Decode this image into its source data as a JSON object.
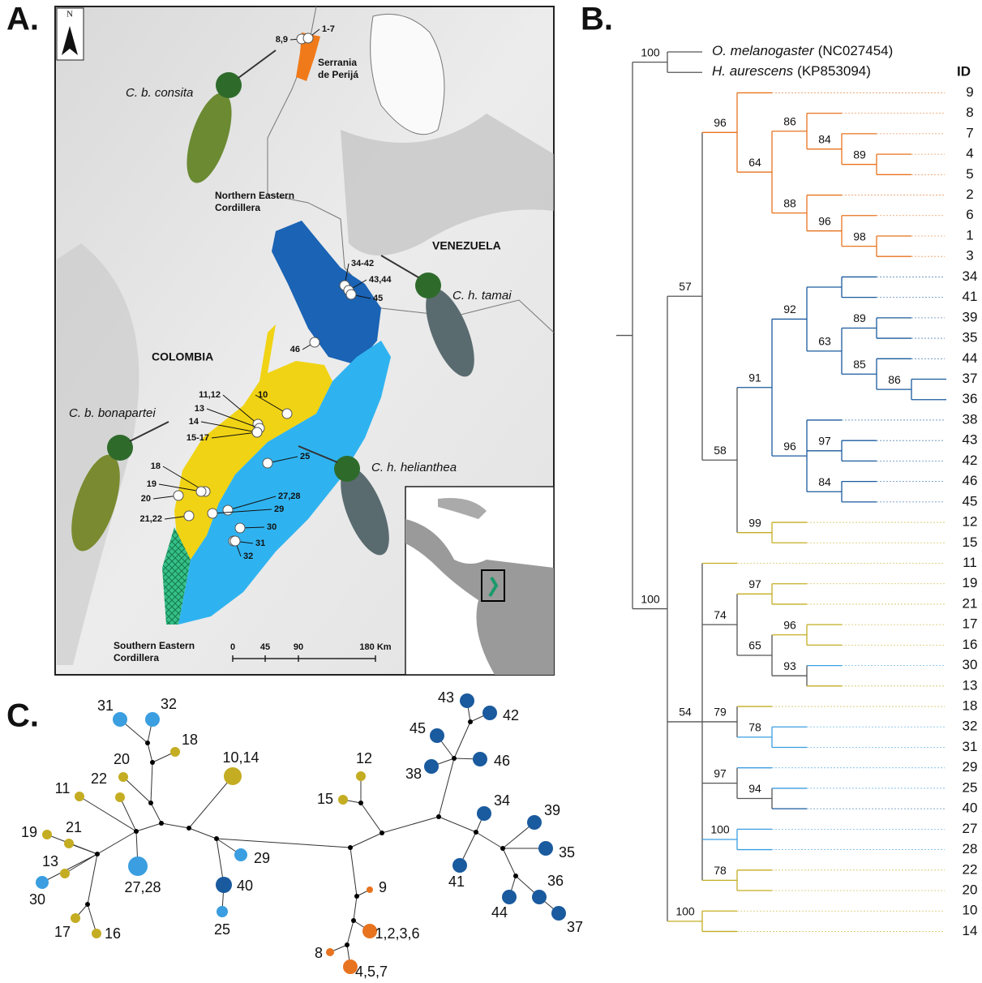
{
  "panels": [
    "A.",
    "B.",
    "C."
  ],
  "map": {
    "north": "N",
    "labels": [
      "C. b. consita",
      "Serrania",
      "de Perijá",
      "Northern Eastern",
      "Cordillera",
      "VENEZUELA",
      "C. h. tamai",
      "COLOMBIA",
      "C. b. bonapartei",
      "C. h. helianthea",
      "Southern Eastern",
      "Cordillera"
    ],
    "sites": [
      "8,9",
      "1-7",
      "34-42",
      "43,44",
      "45",
      "46",
      "10",
      "11,12",
      "13",
      "14",
      "15-17",
      "18",
      "19",
      "20",
      "21,22",
      "25",
      "27,28",
      "29",
      "30",
      "31",
      "32"
    ],
    "scale": [
      "0",
      "45",
      "90",
      "180 Km"
    ]
  },
  "tree": {
    "id_header": "ID",
    "root": {
      "children": [
        {
          "support": 100,
          "children": [
            {
              "name": "O. melanogaster",
              "accession": "(NC027454)"
            },
            {
              "name": "H. aurescens",
              "accession": "(KP853094)"
            }
          ]
        },
        {
          "support": 100,
          "children": [
            {
              "support": 57,
              "children": [
                {
                  "support": 96,
                  "color": "#e8731f",
                  "children": [
                    {
                      "id": 9,
                      "color": "#e8731f"
                    },
                    {
                      "support": 64,
                      "color": "#e8731f",
                      "children": [
                        {
                          "support": 86,
                          "color": "#e8731f",
                          "children": [
                            {
                              "id": 8,
                              "color": "#e8731f"
                            },
                            {
                              "support": 84,
                              "color": "#e8731f",
                              "children": [
                                {
                                  "id": 7,
                                  "color": "#e8731f"
                                },
                                {
                                  "support": 89,
                                  "color": "#e8731f",
                                  "children": [
                                    {
                                      "id": 4,
                                      "color": "#e8731f"
                                    },
                                    {
                                      "id": 5,
                                      "color": "#e8731f"
                                    }
                                  ]
                                }
                              ]
                            }
                          ]
                        },
                        {
                          "support": 88,
                          "color": "#e8731f",
                          "children": [
                            {
                              "id": 2,
                              "color": "#e8731f"
                            },
                            {
                              "support": 96,
                              "color": "#e8731f",
                              "children": [
                                {
                                  "id": 6,
                                  "color": "#e8731f"
                                },
                                {
                                  "support": 98,
                                  "color": "#e8731f",
                                  "children": [
                                    {
                                      "id": 1,
                                      "color": "#e8731f"
                                    },
                                    {
                                      "id": 3,
                                      "color": "#e8731f"
                                    }
                                  ]
                                }
                              ]
                            }
                          ]
                        }
                      ]
                    }
                  ]
                },
                {
                  "support": 58,
                  "children": [
                    {
                      "support": 91,
                      "color": "#1a5a9e",
                      "children": [
                        {
                          "support": 92,
                          "color": "#1a5a9e",
                          "children": [
                            {
                              "color": "#1a5a9e",
                              "children": [
                                {
                                  "id": 34,
                                  "color": "#1a5a9e"
                                },
                                {
                                  "id": 41,
                                  "color": "#1a5a9e"
                                }
                              ]
                            },
                            {
                              "support": 63,
                              "color": "#1a5a9e",
                              "children": [
                                {
                                  "support": 89,
                                  "color": "#1a5a9e",
                                  "children": [
                                    {
                                      "id": 39,
                                      "color": "#1a5a9e"
                                    },
                                    {
                                      "id": 35,
                                      "color": "#1a5a9e"
                                    }
                                  ]
                                },
                                {
                                  "support": 85,
                                  "color": "#1a5a9e",
                                  "children": [
                                    {
                                      "id": 44,
                                      "color": "#1a5a9e"
                                    },
                                    {
                                      "support": 86,
                                      "color": "#1a5a9e",
                                      "children": [
                                        {
                                          "id": 37,
                                          "color": "#1a5a9e"
                                        },
                                        {
                                          "id": 36,
                                          "color": "#1a5a9e"
                                        }
                                      ]
                                    }
                                  ]
                                }
                              ]
                            }
                          ]
                        },
                        {
                          "support": 96,
                          "color": "#1a5a9e",
                          "children": [
                            {
                              "id": 38,
                              "color": "#1a5a9e"
                            },
                            {
                              "support": 97,
                              "color": "#1a5a9e",
                              "children": [
                                {
                                  "id": 43,
                                  "color": "#1a5a9e"
                                },
                                {
                                  "id": 42,
                                  "color": "#1a5a9e"
                                }
                              ]
                            },
                            {
                              "support": 84,
                              "color": "#1a5a9e",
                              "children": [
                                {
                                  "id": 46,
                                  "color": "#1a5a9e"
                                },
                                {
                                  "id": 45,
                                  "color": "#1a5a9e"
                                }
                              ]
                            }
                          ]
                        }
                      ]
                    },
                    {
                      "support": 99,
                      "color": "#c4ad22",
                      "children": [
                        {
                          "id": 12,
                          "color": "#c4ad22"
                        },
                        {
                          "id": 15,
                          "color": "#c4ad22"
                        }
                      ]
                    }
                  ]
                }
              ]
            },
            {
              "support": 54,
              "children": [
                {
                  "id": 11,
                  "color": "#c4ad22"
                },
                {
                  "support": 74,
                  "children": [
                    {
                      "support": 97,
                      "color": "#c4ad22",
                      "children": [
                        {
                          "id": 19,
                          "color": "#c4ad22"
                        },
                        {
                          "id": 21,
                          "color": "#c4ad22"
                        }
                      ]
                    },
                    {
                      "support": 65,
                      "children": [
                        {
                          "support": 96,
                          "color": "#c4ad22",
                          "children": [
                            {
                              "id": 17,
                              "color": "#c4ad22"
                            },
                            {
                              "id": 16,
                              "color": "#c4ad22"
                            }
                          ]
                        },
                        {
                          "support": 93,
                          "children": [
                            {
                              "id": 30,
                              "color": "#3a9ee0"
                            },
                            {
                              "id": 13,
                              "color": "#c4ad22"
                            }
                          ]
                        }
                      ]
                    }
                  ]
                },
                {
                  "support": 79,
                  "children": [
                    {
                      "id": 18,
                      "color": "#c4ad22"
                    },
                    {
                      "support": 78,
                      "color": "#3a9ee0",
                      "children": [
                        {
                          "id": 32,
                          "color": "#3a9ee0"
                        },
                        {
                          "id": 31,
                          "color": "#3a9ee0"
                        }
                      ]
                    }
                  ]
                },
                {
                  "support": 97,
                  "children": [
                    {
                      "id": 29,
                      "color": "#3a9ee0"
                    },
                    {
                      "support": 94,
                      "children": [
                        {
                          "id": 25,
                          "color": "#3a9ee0"
                        },
                        {
                          "id": 40,
                          "color": "#1a5a9e"
                        }
                      ]
                    }
                  ]
                },
                {
                  "support": 100,
                  "color": "#3a9ee0",
                  "children": [
                    {
                      "id": 27,
                      "color": "#3a9ee0"
                    },
                    {
                      "id": 28,
                      "color": "#3a9ee0"
                    }
                  ]
                },
                {
                  "support": 78,
                  "color": "#c4ad22",
                  "children": [
                    {
                      "id": 22,
                      "color": "#c4ad22"
                    },
                    {
                      "id": 20,
                      "color": "#c4ad22"
                    }
                  ]
                }
              ]
            },
            {
              "support": 100,
              "color": "#c4ad22",
              "children": [
                {
                  "id": 10,
                  "color": "#c4ad22"
                },
                {
                  "id": 14,
                  "color": "#c4ad22"
                }
              ]
            }
          ]
        }
      ]
    }
  },
  "network": {
    "nodes": [
      {
        "label": "31",
        "color": "#3a9ee0"
      },
      {
        "label": "32",
        "color": "#3a9ee0"
      },
      {
        "label": "18",
        "color": "#c4ad22"
      },
      {
        "label": "20",
        "color": "#c4ad22"
      },
      {
        "label": "10,14",
        "color": "#c4ad22"
      },
      {
        "label": "11",
        "color": "#c4ad22"
      },
      {
        "label": "22",
        "color": "#c4ad22"
      },
      {
        "label": "19",
        "color": "#c4ad22"
      },
      {
        "label": "21",
        "color": "#c4ad22"
      },
      {
        "label": "13",
        "color": "#c4ad22"
      },
      {
        "label": "30",
        "color": "#3a9ee0"
      },
      {
        "label": "27,28",
        "color": "#3a9ee0"
      },
      {
        "label": "29",
        "color": "#3a9ee0"
      },
      {
        "label": "40",
        "color": "#1a5a9e"
      },
      {
        "label": "25",
        "color": "#3a9ee0"
      },
      {
        "label": "17",
        "color": "#c4ad22"
      },
      {
        "label": "16",
        "color": "#c4ad22"
      },
      {
        "label": "12",
        "color": "#c4ad22"
      },
      {
        "label": "15",
        "color": "#c4ad22"
      },
      {
        "label": "43",
        "color": "#1a5a9e"
      },
      {
        "label": "42",
        "color": "#1a5a9e"
      },
      {
        "label": "45",
        "color": "#1a5a9e"
      },
      {
        "label": "46",
        "color": "#1a5a9e"
      },
      {
        "label": "38",
        "color": "#1a5a9e"
      },
      {
        "label": "34",
        "color": "#1a5a9e"
      },
      {
        "label": "39",
        "color": "#1a5a9e"
      },
      {
        "label": "35",
        "color": "#1a5a9e"
      },
      {
        "label": "41",
        "color": "#1a5a9e"
      },
      {
        "label": "36",
        "color": "#1a5a9e"
      },
      {
        "label": "44",
        "color": "#1a5a9e"
      },
      {
        "label": "37",
        "color": "#1a5a9e"
      },
      {
        "label": "9",
        "color": "#e8731f"
      },
      {
        "label": "1,2,3,6",
        "color": "#e8731f"
      },
      {
        "label": "8",
        "color": "#e8731f"
      },
      {
        "label": "4,5,7",
        "color": "#e8731f"
      }
    ]
  }
}
